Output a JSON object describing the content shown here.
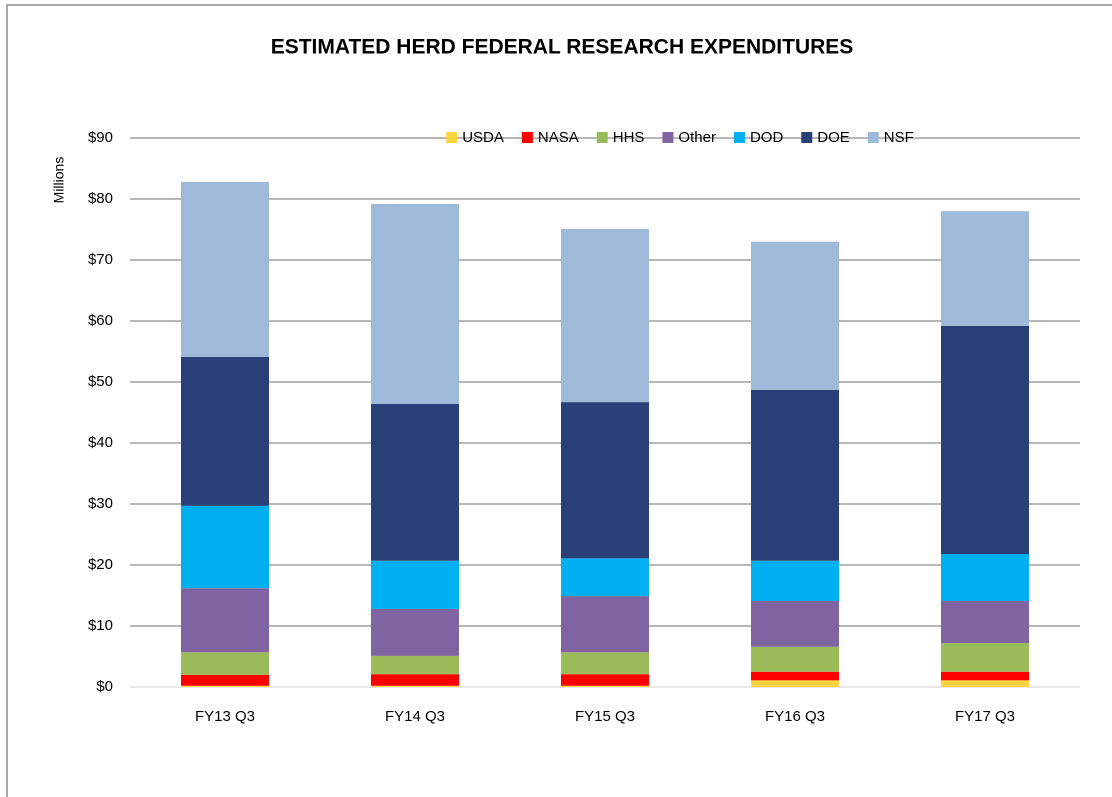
{
  "chart_data": {
    "type": "stacked_bar",
    "title": "ESTIMATED HERD FEDERAL RESEARCH EXPENDITURES",
    "y_label": "Millions",
    "categories": [
      "FY13 Q3",
      "FY14 Q3",
      "FY15 Q3",
      "FY16 Q3",
      "FY17 Q3"
    ],
    "series": [
      {
        "name": "USDA",
        "color": "#ffd23f",
        "values": [
          0.2,
          0.2,
          0.2,
          1.1,
          1.1
        ]
      },
      {
        "name": "NASA",
        "color": "#ff0000",
        "values": [
          1.8,
          1.9,
          1.9,
          1.4,
          1.4
        ]
      },
      {
        "name": "HHS",
        "color": "#9bbb59",
        "values": [
          3.7,
          3.0,
          3.6,
          4.1,
          4.7
        ]
      },
      {
        "name": "Other",
        "color": "#8064a2",
        "values": [
          10.5,
          7.7,
          9.2,
          7.5,
          6.9
        ]
      },
      {
        "name": "DOD",
        "color": "#00b0f0",
        "values": [
          13.5,
          7.9,
          6.2,
          6.6,
          7.7
        ]
      },
      {
        "name": "DOE",
        "color": "#283f77",
        "values": [
          24.4,
          25.7,
          25.6,
          28.0,
          37.4
        ]
      },
      {
        "name": "NSF",
        "color": "#9fb9d9",
        "values": [
          28.7,
          32.8,
          28.4,
          24.3,
          18.8
        ]
      }
    ],
    "ylim": [
      0,
      90
    ],
    "yticks": [
      {
        "value": 0,
        "label": "$0"
      },
      {
        "value": 10,
        "label": "$10"
      },
      {
        "value": 20,
        "label": "$20"
      },
      {
        "value": 30,
        "label": "$30"
      },
      {
        "value": 40,
        "label": "$40"
      },
      {
        "value": 50,
        "label": "$50"
      },
      {
        "value": 60,
        "label": "$60"
      },
      {
        "value": 70,
        "label": "$70"
      },
      {
        "value": 80,
        "label": "$80"
      },
      {
        "value": 90,
        "label": "$90"
      }
    ],
    "grid": true,
    "legend": "top"
  }
}
